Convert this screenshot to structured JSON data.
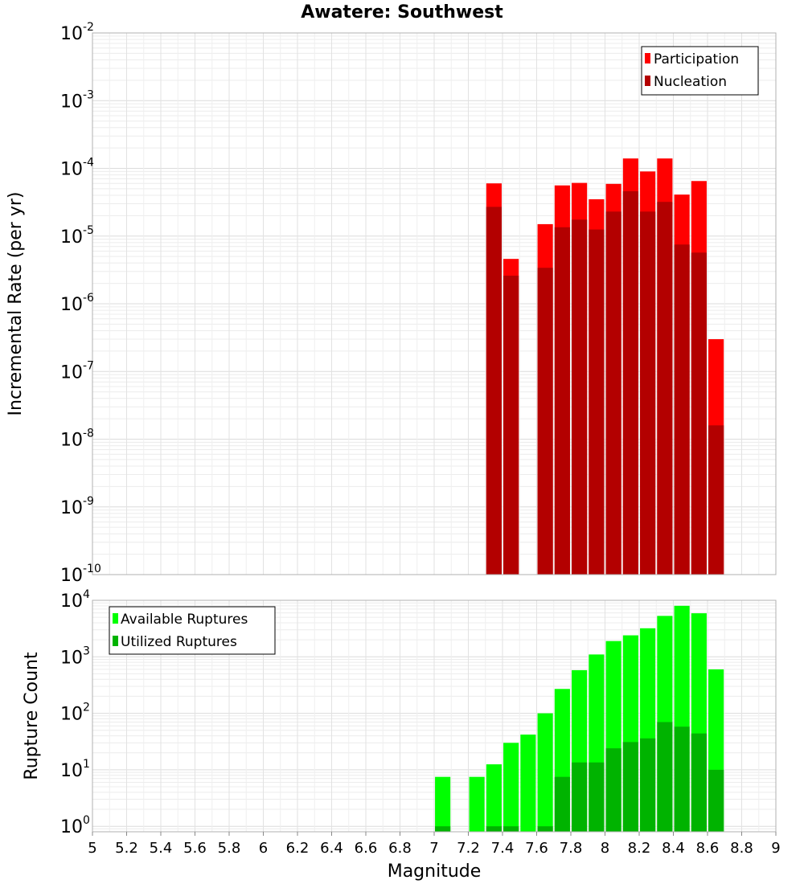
{
  "chart_data": [
    {
      "type": "bar",
      "title": "Awatere: Southwest",
      "xlabel": "",
      "ylabel": "Incremental Rate (per yr)",
      "yscale": "log",
      "ylim": [
        1e-10,
        0.01
      ],
      "ytick_exponents": [
        "-10",
        "-9",
        "-8",
        "-7",
        "-6",
        "-5",
        "-4",
        "-3",
        "-2"
      ],
      "ytick_base": "10",
      "xlim": [
        5,
        9
      ],
      "grid": true,
      "legend_position": "top-right",
      "bar_width": 0.09,
      "series": [
        {
          "name": "Participation",
          "color": "#ff0000",
          "x": [
            7.35,
            7.45,
            7.65,
            7.75,
            7.85,
            7.95,
            8.05,
            8.15,
            8.25,
            8.35,
            8.45,
            8.55,
            8.65
          ],
          "values": [
            6e-05,
            4.6e-06,
            1.5e-05,
            5.6e-05,
            6.1e-05,
            3.5e-05,
            5.9e-05,
            0.00014,
            9e-05,
            0.00014,
            4.1e-05,
            6.5e-05,
            3e-07
          ]
        },
        {
          "name": "Nucleation",
          "color": "#b30000",
          "x": [
            7.35,
            7.45,
            7.65,
            7.75,
            7.85,
            7.95,
            8.05,
            8.15,
            8.25,
            8.35,
            8.45,
            8.55,
            8.65
          ],
          "values": [
            2.7e-05,
            2.6e-06,
            3.4e-06,
            1.35e-05,
            1.75e-05,
            1.25e-05,
            2.3e-05,
            4.6e-05,
            2.3e-05,
            3.2e-05,
            7.5e-06,
            5.7e-06,
            1.6e-08
          ]
        }
      ]
    },
    {
      "type": "bar",
      "title": "",
      "xlabel": "Magnitude",
      "ylabel": "Rupture Count",
      "yscale": "log",
      "ylim": [
        0.8,
        10000
      ],
      "ytick_exponents": [
        "0",
        "1",
        "2",
        "3",
        "4"
      ],
      "ytick_base": "10",
      "xlim": [
        5,
        9
      ],
      "xticks": [
        "5",
        "5.2",
        "5.4",
        "5.6",
        "5.8",
        "6",
        "6.2",
        "6.4",
        "6.6",
        "6.8",
        "7",
        "7.2",
        "7.4",
        "7.6",
        "7.8",
        "8",
        "8.2",
        "8.4",
        "8.6",
        "8.8",
        "9"
      ],
      "grid": true,
      "legend_position": "top-left",
      "bar_width": 0.09,
      "series": [
        {
          "name": "Available Ruptures",
          "color": "#00ff00",
          "x": [
            7.05,
            7.25,
            7.35,
            7.45,
            7.55,
            7.65,
            7.75,
            7.85,
            7.95,
            8.05,
            8.15,
            8.25,
            8.35,
            8.45,
            8.55,
            8.65
          ],
          "values": [
            7.5,
            7.5,
            12.5,
            30,
            42,
            100,
            270,
            580,
            1100,
            1900,
            2400,
            3200,
            5300,
            8000,
            5900,
            600
          ]
        },
        {
          "name": "Utilized Ruptures",
          "color": "#00b300",
          "x": [
            7.05,
            7.35,
            7.45,
            7.65,
            7.75,
            7.85,
            7.95,
            8.05,
            8.15,
            8.25,
            8.35,
            8.45,
            8.55,
            8.65
          ],
          "values": [
            1,
            1,
            1,
            1,
            7.5,
            13.5,
            13.5,
            24,
            31,
            36,
            70,
            58,
            44,
            10
          ]
        }
      ]
    }
  ]
}
